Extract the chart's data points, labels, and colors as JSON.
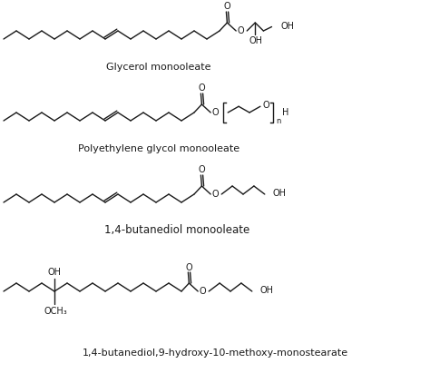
{
  "bg_color": "#ffffff",
  "line_color": "#1a1a1a",
  "labels": [
    "Glycerol monooleate",
    "Polyethylene glycol monooleate",
    "1,4-butanediol monooleate",
    "1,4-butanediol,9-hydroxy-10-methoxy-monostearate"
  ],
  "label_fontsize": 8,
  "annot_fontsize": 7
}
